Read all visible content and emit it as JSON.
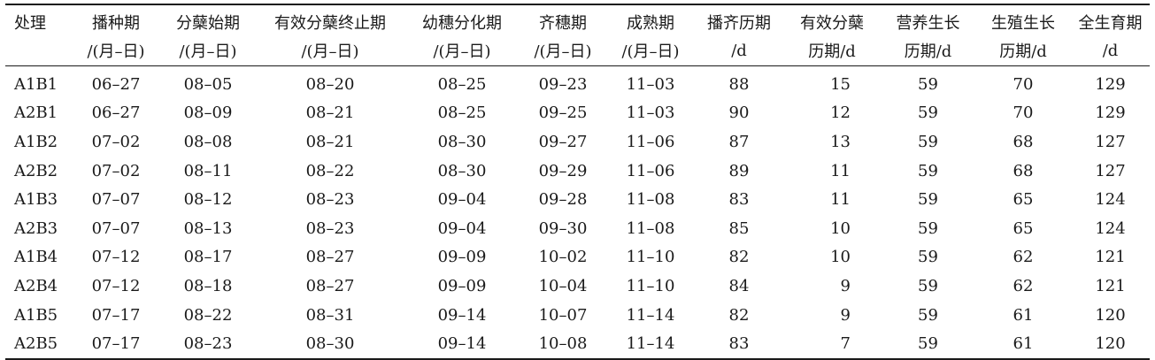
{
  "table": {
    "header_line1": [
      "处理",
      "播种期",
      "分蘖始期",
      "有效分蘖终止期",
      "幼穗分化期",
      "齐穗期",
      "成熟期",
      "播齐历期",
      "有效分蘖",
      "营养生长",
      "生殖生长",
      "全生育期"
    ],
    "header_line2": [
      "",
      "/(月–日)",
      "/(月–日)",
      "/(月–日)",
      "/(月–日)",
      "/(月–日)",
      "/(月–日)",
      "/d",
      "历期/d",
      "历期/d",
      "历期/d",
      "/d"
    ],
    "rows": [
      [
        "A1B1",
        "06–27",
        "08–05",
        "08–20",
        "08–25",
        "09–23",
        "11–03",
        "88",
        "15",
        "59",
        "70",
        "129"
      ],
      [
        "A2B1",
        "06–27",
        "08–09",
        "08–21",
        "08–25",
        "09–25",
        "11–03",
        "90",
        "12",
        "59",
        "70",
        "129"
      ],
      [
        "A1B2",
        "07–02",
        "08–08",
        "08–21",
        "08–30",
        "09–27",
        "11–06",
        "87",
        "13",
        "59",
        "68",
        "127"
      ],
      [
        "A2B2",
        "07–02",
        "08–11",
        "08–22",
        "08–30",
        "09–29",
        "11–06",
        "89",
        "11",
        "59",
        "68",
        "127"
      ],
      [
        "A1B3",
        "07–07",
        "08–12",
        "08–23",
        "09–04",
        "09–28",
        "11–08",
        "83",
        "11",
        "59",
        "65",
        "124"
      ],
      [
        "A2B3",
        "07–07",
        "08–13",
        "08–23",
        "09–04",
        "09–30",
        "11–08",
        "85",
        "10",
        "59",
        "65",
        "124"
      ],
      [
        "A1B4",
        "07–12",
        "08–17",
        "08–27",
        "09–09",
        "10–02",
        "11–10",
        "82",
        "10",
        "59",
        "62",
        "121"
      ],
      [
        "A2B4",
        "07–12",
        "08–18",
        "08–27",
        "09–09",
        "10–04",
        "11–10",
        "84",
        "9",
        "59",
        "62",
        "121"
      ],
      [
        "A1B5",
        "07–17",
        "08–22",
        "08–31",
        "09–14",
        "10–07",
        "11–14",
        "82",
        "9",
        "59",
        "61",
        "120"
      ],
      [
        "A2B5",
        "07–17",
        "08–23",
        "08–30",
        "09–14",
        "10–08",
        "11–14",
        "83",
        "7",
        "59",
        "61",
        "120"
      ]
    ]
  }
}
